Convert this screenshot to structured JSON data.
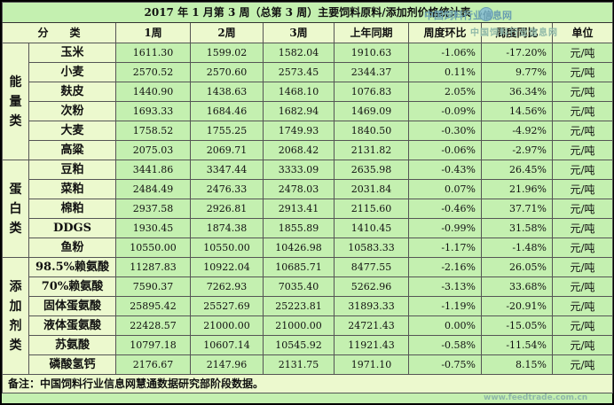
{
  "title": "2017 年 1 月第 3 周（总第 3 周）主要饲料原料/添加剂价格统计表",
  "headers": {
    "category": "分　　类",
    "w1": "1周",
    "w2": "2周",
    "w3": "3周",
    "last_year": "上年同期",
    "wow": "周度环比",
    "yoy": "周度同比",
    "unit": "单位"
  },
  "groups": [
    {
      "label": "能量类",
      "chars": [
        "能",
        "量",
        "类"
      ]
    },
    {
      "label": "蛋白类",
      "chars": [
        "蛋",
        "白",
        "类"
      ]
    },
    {
      "label": "添加剂类",
      "chars": [
        "添",
        "加",
        "剂",
        "类"
      ]
    }
  ],
  "rows": [
    {
      "name": "玉米",
      "w1": "1611.30",
      "w2": "1599.02",
      "w3": "1582.04",
      "ly": "1910.63",
      "wow": "-1.06%",
      "yoy": "-17.20%",
      "unit": "元/吨"
    },
    {
      "name": "小麦",
      "w1": "2570.52",
      "w2": "2570.60",
      "w3": "2573.45",
      "ly": "2344.37",
      "wow": "0.11%",
      "yoy": "9.77%",
      "unit": "元/吨"
    },
    {
      "name": "麸皮",
      "w1": "1440.90",
      "w2": "1438.63",
      "w3": "1468.10",
      "ly": "1076.83",
      "wow": "2.05%",
      "yoy": "36.34%",
      "unit": "元/吨"
    },
    {
      "name": "次粉",
      "w1": "1693.33",
      "w2": "1684.46",
      "w3": "1682.94",
      "ly": "1469.09",
      "wow": "-0.09%",
      "yoy": "14.56%",
      "unit": "元/吨"
    },
    {
      "name": "大麦",
      "w1": "1758.52",
      "w2": "1755.25",
      "w3": "1749.93",
      "ly": "1840.50",
      "wow": "-0.30%",
      "yoy": "-4.92%",
      "unit": "元/吨"
    },
    {
      "name": "高粱",
      "w1": "2075.03",
      "w2": "2069.71",
      "w3": "2068.42",
      "ly": "2131.82",
      "wow": "-0.06%",
      "yoy": "-2.97%",
      "unit": "元/吨"
    },
    {
      "name": "豆粕",
      "w1": "3441.86",
      "w2": "3347.44",
      "w3": "3333.09",
      "ly": "2635.98",
      "wow": "-0.43%",
      "yoy": "26.45%",
      "unit": "元/吨"
    },
    {
      "name": "菜粕",
      "w1": "2484.49",
      "w2": "2476.33",
      "w3": "2478.03",
      "ly": "2031.84",
      "wow": "0.07%",
      "yoy": "21.96%",
      "unit": "元/吨"
    },
    {
      "name": "棉粕",
      "w1": "2937.58",
      "w2": "2926.81",
      "w3": "2913.41",
      "ly": "2115.60",
      "wow": "-0.46%",
      "yoy": "37.71%",
      "unit": "元/吨"
    },
    {
      "name": "DDGS",
      "w1": "1930.45",
      "w2": "1874.38",
      "w3": "1855.89",
      "ly": "1410.45",
      "wow": "-0.99%",
      "yoy": "31.58%",
      "unit": "元/吨"
    },
    {
      "name": "鱼粉",
      "w1": "10550.00",
      "w2": "10550.00",
      "w3": "10426.98",
      "ly": "10583.33",
      "wow": "-1.17%",
      "yoy": "-1.48%",
      "unit": "元/吨"
    },
    {
      "name": "98.5%赖氨酸",
      "w1": "11287.83",
      "w2": "10922.04",
      "w3": "10685.71",
      "ly": "8477.55",
      "wow": "-2.16%",
      "yoy": "26.05%",
      "unit": "元/吨"
    },
    {
      "name": "70%赖氨酸",
      "w1": "7590.37",
      "w2": "7262.93",
      "w3": "7035.40",
      "ly": "5262.96",
      "wow": "-3.13%",
      "yoy": "33.68%",
      "unit": "元/吨"
    },
    {
      "name": "固体蛋氨酸",
      "w1": "25895.42",
      "w2": "25527.69",
      "w3": "25223.81",
      "ly": "31893.33",
      "wow": "-1.19%",
      "yoy": "-20.91%",
      "unit": "元/吨"
    },
    {
      "name": "液体蛋氨酸",
      "w1": "22428.57",
      "w2": "21000.00",
      "w3": "21000.00",
      "ly": "24721.43",
      "wow": "0.00%",
      "yoy": "-15.05%",
      "unit": "元/吨"
    },
    {
      "name": "苏氨酸",
      "w1": "10797.18",
      "w2": "10607.14",
      "w3": "10545.92",
      "ly": "11921.43",
      "wow": "-0.58%",
      "yoy": "-11.54%",
      "unit": "元/吨"
    },
    {
      "name": "磷酸氢钙",
      "w1": "2176.67",
      "w2": "2147.96",
      "w3": "2131.75",
      "ly": "1971.10",
      "wow": "-0.75%",
      "yoy": "8.15%",
      "unit": "元/吨"
    }
  ],
  "note": "备注：中国饲料行业信息网慧通数据研究部阶段数据。",
  "watermark": {
    "top": "中国饲料行业信息网",
    "sub": "中国饲料行业信息网",
    "bottom": "www.feedtrade.com.cn"
  }
}
